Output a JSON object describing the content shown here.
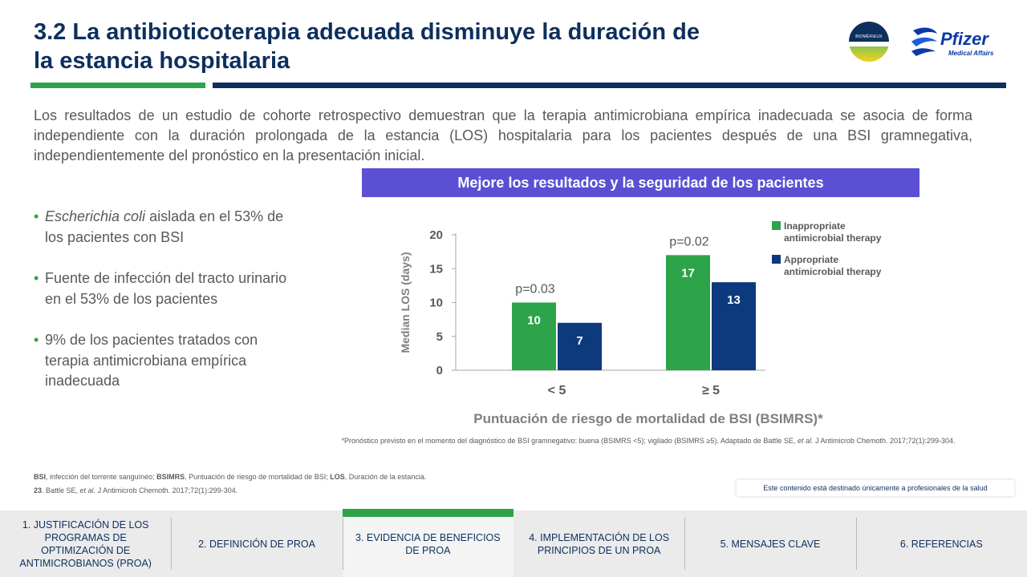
{
  "header": {
    "title_line1": "3.2 La antibioticoterapia adecuada disminuye la duración de",
    "title_line2": "la estancia hospitalaria",
    "logo_biomerieux_text": "BIOMÉRIEUX",
    "logo_pfizer_text": "Pfizer",
    "logo_pfizer_sub": "Medical Affairs"
  },
  "intro": "Los resultados de un estudio de cohorte retrospectivo demuestran que la terapia antimicrobiana empírica inadecuada se asocia de forma independiente con la duración prolongada de la estancia (LOS) hospitalaria para los pacientes después de una BSI gramnegativa, independientemente del pronóstico en la presentación inicial.",
  "banner": "Mejore los resultados y la seguridad de los pacientes",
  "bullets": [
    {
      "italic": "Escherichia coli",
      "text": " aislada en el 53% de los pacientes con BSI"
    },
    {
      "italic": "",
      "text": "Fuente de infección del tracto urinario en el 53% de los pacientes"
    },
    {
      "italic": "",
      "text": "9% de los pacientes tratados con terapia antimicrobiana empírica inadecuada"
    }
  ],
  "chart_data": {
    "type": "bar",
    "categories": [
      "< 5",
      "≥ 5"
    ],
    "series": [
      {
        "name": "Inappropriate antimicrobial therapy",
        "values": [
          10,
          17
        ],
        "color": "#2da44a"
      },
      {
        "name": "Appropriate antimicrobial therapy",
        "values": [
          7,
          13
        ],
        "color": "#0d3a7d"
      }
    ],
    "ylabel": "Median LOS (days)",
    "xlabel": "Puntuación de riesgo de mortalidad de BSI (BSIMRS)*",
    "ylim": [
      0,
      20
    ],
    "yticks": [
      0,
      5,
      10,
      15,
      20
    ],
    "annotations": [
      "p=0.03",
      "p=0.02"
    ],
    "legend_position": "right",
    "grid": false
  },
  "footnote": {
    "pre": "*Pronóstico previsto en el momento del diagnóstico de BSI gramnegativo: buena (BSIMRS <5); vigilado (BSIMRS ≥5). Adaptado de Battle SE, ",
    "etal": "et al.",
    "post": " J Antimicrob Chemoth. 2017;72(1):299-304."
  },
  "abbreviations": {
    "bsi_key": "BSI",
    "bsi_text": ", infección del torrente sanguíneo; ",
    "bsimrs_key": "BSIMRS",
    "bsimrs_text": ", Puntuación de riesgo de mortalidad de BSI; ",
    "los_key": "LOS",
    "los_text": ", Duración de la estancia.",
    "ref_num": "23",
    "ref_pre": ". Battle SE, ",
    "ref_etal": "et al.",
    "ref_post": " J Antimicrob Chemoth. 2017;72(1):299-304."
  },
  "disclaimer": "Este contenido está destinado únicamente a profesionales de la salud",
  "nav": [
    {
      "label": "1. JUSTIFICACIÓN DE LOS PROGRAMAS DE OPTIMIZACIÓN DE ANTIMICROBIANOS (PROA)"
    },
    {
      "label": "2. DEFINICIÓN DE PROA"
    },
    {
      "label": "3. EVIDENCIA DE BENEFICIOS DE PROA"
    },
    {
      "label": "4. IMPLEMENTACIÓN DE LOS PRINCIPIOS DE UN PROA"
    },
    {
      "label": "5. MENSAJES CLAVE"
    },
    {
      "label": "6. REFERENCIAS"
    }
  ],
  "active_nav_index": 2
}
